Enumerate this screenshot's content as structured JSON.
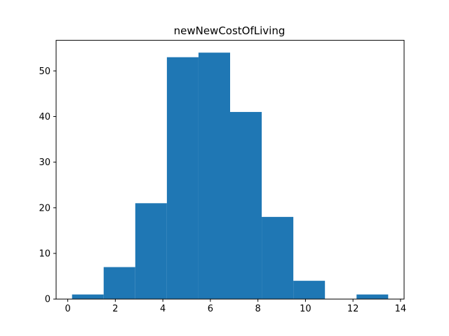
{
  "chart_data": {
    "type": "bar",
    "subtype": "histogram",
    "title": "newNewCostOfLiving",
    "xlabel": "",
    "ylabel": "",
    "bin_edges": [
      0.18,
      1.51,
      2.84,
      4.17,
      5.5,
      6.83,
      8.16,
      9.49,
      10.82,
      12.15,
      13.48
    ],
    "values": [
      1,
      7,
      21,
      53,
      54,
      41,
      18,
      4,
      0,
      1
    ],
    "xlim": [
      -0.49,
      14.15
    ],
    "ylim": [
      0,
      56.7
    ],
    "xticks": [
      0,
      2,
      4,
      6,
      8,
      10,
      12,
      14
    ],
    "yticks": [
      0,
      10,
      20,
      30,
      40,
      50
    ],
    "bar_color": "#1f77b4",
    "grid": false,
    "legend": "none"
  }
}
